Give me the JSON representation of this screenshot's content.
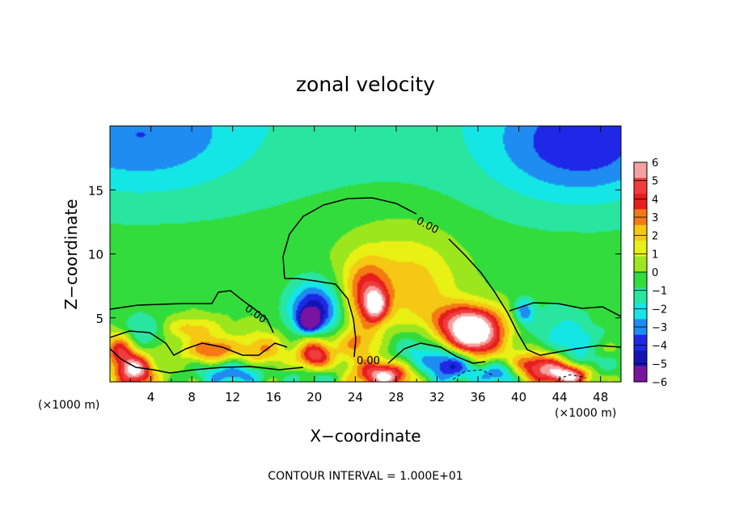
{
  "chart_data": {
    "type": "heatmap",
    "title": "zonal velocity",
    "xlabel": "X−coordinate",
    "ylabel": "Z−coordinate",
    "x_unit_left": "(×1000 m)",
    "x_unit_right": "(×1000 m)",
    "xlim": [
      0,
      50
    ],
    "ylim": [
      0,
      20
    ],
    "xticks": [
      4,
      8,
      12,
      16,
      20,
      24,
      28,
      32,
      36,
      40,
      44,
      48
    ],
    "xtick_labels": [
      "4",
      "8",
      "12",
      "16",
      "20",
      "24",
      "28",
      "32",
      "36",
      "40",
      "44",
      "48"
    ],
    "yticks": [
      5,
      10,
      15
    ],
    "ytick_labels": [
      "5",
      "10",
      "15"
    ],
    "colorbar": {
      "range": [
        -6,
        6
      ],
      "levels": [
        6,
        5,
        4,
        3,
        2,
        1,
        0,
        -1,
        -2,
        -3,
        -4,
        -5,
        -6
      ],
      "labels": [
        "6",
        "5",
        "4",
        "3",
        "2",
        "1",
        "0",
        "−1",
        "−2",
        "−3",
        "−4",
        "−5",
        "−6"
      ],
      "colors": [
        "#f5a0a0",
        "#f03c3c",
        "#e81e1e",
        "#f57a14",
        "#f5c814",
        "#e8f014",
        "#9ce61e",
        "#32dc3c",
        "#28e6a0",
        "#14e6e6",
        "#1e8cf0",
        "#1e28e6",
        "#1414b4",
        "#7814a0"
      ]
    },
    "zero_contour_labels": [
      "0.00",
      "0.00",
      "0.00"
    ],
    "footer": "CONTOUR INTERVAL = 1.000E+01",
    "features": [
      {
        "x": 20,
        "z": 5.5,
        "value": -5,
        "rx": 1.8,
        "rz": 1.6
      },
      {
        "x": 19.5,
        "z": 4.8,
        "value": -6,
        "rx": 0.6,
        "rz": 0.5
      },
      {
        "x": 25,
        "z": 7.0,
        "value": 3.5,
        "rx": 1.5,
        "rz": 1.8
      },
      {
        "x": 26,
        "z": 6.0,
        "value": 4.5,
        "rx": 0.8,
        "rz": 0.9
      },
      {
        "x": 30,
        "z": 7.0,
        "value": 1.8,
        "rx": 3.0,
        "rz": 2.5
      },
      {
        "x": 28,
        "z": 10.5,
        "value": 0.6,
        "rx": 4.0,
        "rz": 2.5
      },
      {
        "x": 35.5,
        "z": 3.5,
        "value": 6.5,
        "rx": 2.0,
        "rz": 1.2
      },
      {
        "x": 35,
        "z": 4.8,
        "value": 3.5,
        "rx": 2.5,
        "rz": 1.0
      },
      {
        "x": 30,
        "z": 2.0,
        "value": -2.5,
        "rx": 2.2,
        "rz": 1.6
      },
      {
        "x": 33.5,
        "z": 1.3,
        "value": -4.5,
        "rx": 1.6,
        "rz": 0.9
      },
      {
        "x": 27,
        "z": 0.5,
        "value": 6.5,
        "rx": 2.0,
        "rz": 0.8
      },
      {
        "x": 20,
        "z": 2.0,
        "value": 5.5,
        "rx": 1.2,
        "rz": 1.2
      },
      {
        "x": 20,
        "z": 0.5,
        "value": -3.5,
        "rx": 1.5,
        "rz": 0.7
      },
      {
        "x": 10,
        "z": 2.5,
        "value": 3.5,
        "rx": 1.8,
        "rz": 0.7
      },
      {
        "x": 12,
        "z": 0.6,
        "value": -3.5,
        "rx": 2.5,
        "rz": 0.7
      },
      {
        "x": 2.5,
        "z": 0.8,
        "value": 6.0,
        "rx": 1.2,
        "rz": 0.9
      },
      {
        "x": 1.0,
        "z": 2.5,
        "value": 4.0,
        "rx": 1.0,
        "rz": 1.0
      },
      {
        "x": 3,
        "z": 4.0,
        "value": -2.0,
        "rx": 1.5,
        "rz": 1.0
      },
      {
        "x": 8,
        "z": 4.2,
        "value": 2.0,
        "rx": 2.0,
        "rz": 0.6
      },
      {
        "x": 15,
        "z": 2.5,
        "value": 2.5,
        "rx": 1.5,
        "rz": 1.0
      },
      {
        "x": 24,
        "z": 3.0,
        "value": 2.5,
        "rx": 1.5,
        "rz": 1.0
      },
      {
        "x": 38,
        "z": 0.6,
        "value": -4.0,
        "rx": 1.5,
        "rz": 0.7
      },
      {
        "x": 42,
        "z": 1.2,
        "value": 5.0,
        "rx": 2.0,
        "rz": 0.8
      },
      {
        "x": 45,
        "z": 0.5,
        "value": 6.0,
        "rx": 1.5,
        "rz": 0.6
      },
      {
        "x": 47,
        "z": 2.0,
        "value": -2.5,
        "rx": 2.0,
        "rz": 1.2
      },
      {
        "x": 44,
        "z": 4.0,
        "value": -1.8,
        "rx": 2.5,
        "rz": 1.5
      },
      {
        "x": 40.5,
        "z": 5.5,
        "value": -3.0,
        "rx": 0.7,
        "rz": 0.7
      },
      {
        "x": 48,
        "z": 2.5,
        "value": 2.0,
        "rx": 1.2,
        "rz": 0.6
      },
      {
        "x": 46,
        "z": 18.5,
        "value": -3.0,
        "rx": 6.0,
        "rz": 3.0
      },
      {
        "x": 3,
        "z": 19.0,
        "value": -2.2,
        "rx": 7.0,
        "rz": 3.0
      }
    ]
  }
}
